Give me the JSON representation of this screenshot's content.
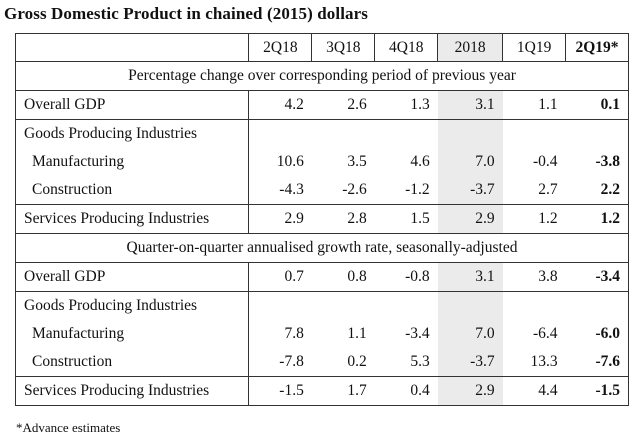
{
  "title": "Gross Domestic Product in chained (2015) dollars",
  "headers": [
    "2Q18",
    "3Q18",
    "4Q18",
    "2018",
    "1Q19",
    "2Q19*"
  ],
  "sections": [
    {
      "heading": "Percentage change over corresponding period of previous year",
      "rows": [
        {
          "label": "Overall GDP",
          "values": [
            "4.2",
            "2.6",
            "1.3",
            "3.1",
            "1.1",
            "0.1"
          ]
        },
        {
          "label": "Goods Producing Industries",
          "values": [
            "",
            "",
            "",
            "",
            "",
            ""
          ]
        },
        {
          "label": "Manufacturing",
          "values": [
            "10.6",
            "3.5",
            "4.6",
            "7.0",
            "-0.4",
            "-3.8"
          ]
        },
        {
          "label": "Construction",
          "values": [
            "-4.3",
            "-2.6",
            "-1.2",
            "-3.7",
            "2.7",
            "2.2"
          ]
        },
        {
          "label": "Services Producing Industries",
          "values": [
            "2.9",
            "2.8",
            "1.5",
            "2.9",
            "1.2",
            "1.2"
          ]
        }
      ]
    },
    {
      "heading": "Quarter-on-quarter annualised growth rate, seasonally-adjusted",
      "rows": [
        {
          "label": "Overall GDP",
          "values": [
            "0.7",
            "0.8",
            "-0.8",
            "3.1",
            "3.8",
            "-3.4"
          ]
        },
        {
          "label": "Goods Producing Industries",
          "values": [
            "",
            "",
            "",
            "",
            "",
            ""
          ]
        },
        {
          "label": "Manufacturing",
          "values": [
            "7.8",
            "1.1",
            "-3.4",
            "7.0",
            "-6.4",
            "-6.0"
          ]
        },
        {
          "label": "Construction",
          "values": [
            "-7.8",
            "0.2",
            "5.3",
            "-3.7",
            "13.3",
            "-7.6"
          ]
        },
        {
          "label": "Services Producing Industries",
          "values": [
            "-1.5",
            "1.7",
            "0.4",
            "2.9",
            "4.4",
            "-1.5"
          ]
        }
      ]
    }
  ],
  "footnote": "*Advance estimates"
}
